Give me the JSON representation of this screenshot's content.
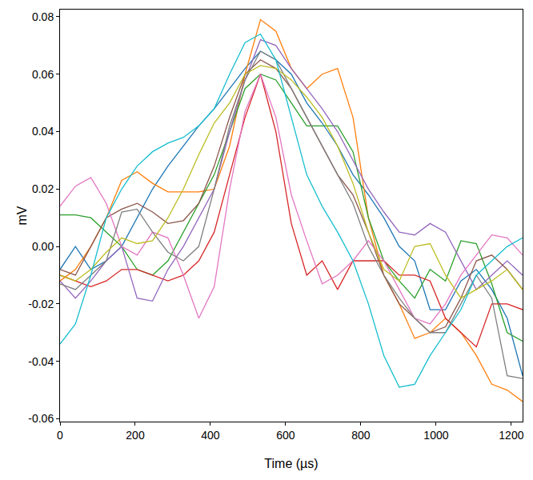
{
  "chart_data": {
    "type": "line",
    "x_label": "Time (µs)",
    "y_label": "mV",
    "x": [
      0,
      41,
      82,
      123,
      164,
      205,
      246,
      287,
      328,
      369,
      410,
      451,
      492,
      533,
      574,
      615,
      656,
      697,
      738,
      779,
      820,
      861,
      902,
      943,
      984,
      1025,
      1066,
      1107,
      1148,
      1189,
      1230
    ],
    "series": [
      {
        "color": "#1f77b4",
        "values": [
          -0.008,
          0.0,
          -0.008,
          -0.005,
          0.0,
          0.01,
          0.02,
          0.028,
          0.035,
          0.042,
          0.048,
          0.055,
          0.062,
          0.068,
          0.065,
          0.06,
          0.05,
          0.043,
          0.035,
          0.025,
          0.018,
          0.01,
          0.0,
          -0.005,
          -0.022,
          -0.022,
          -0.012,
          -0.008,
          -0.015,
          -0.025,
          -0.045
        ]
      },
      {
        "color": "#ff7f0e",
        "values": [
          -0.012,
          -0.008,
          0.0,
          0.01,
          0.023,
          0.026,
          0.022,
          0.019,
          0.019,
          0.019,
          0.02,
          0.035,
          0.06,
          0.079,
          0.075,
          0.062,
          0.055,
          0.06,
          0.062,
          0.045,
          0.01,
          -0.01,
          -0.02,
          -0.032,
          -0.03,
          -0.025,
          -0.03,
          -0.038,
          -0.048,
          -0.05,
          -0.054
        ]
      },
      {
        "color": "#2ca02c",
        "values": [
          0.011,
          0.011,
          0.01,
          0.005,
          0.0,
          -0.008,
          -0.01,
          -0.005,
          0.005,
          0.015,
          0.025,
          0.04,
          0.055,
          0.06,
          0.058,
          0.05,
          0.042,
          0.042,
          0.042,
          0.033,
          0.01,
          -0.005,
          -0.012,
          -0.018,
          -0.008,
          -0.012,
          0.002,
          0.001,
          -0.013,
          -0.03,
          -0.033
        ]
      },
      {
        "color": "#d62728",
        "values": [
          -0.01,
          -0.012,
          -0.014,
          -0.012,
          -0.008,
          -0.008,
          -0.01,
          -0.012,
          -0.01,
          -0.005,
          0.005,
          0.025,
          0.045,
          0.06,
          0.04,
          0.008,
          -0.01,
          -0.005,
          -0.015,
          -0.005,
          -0.005,
          -0.005,
          -0.01,
          -0.01,
          -0.012,
          -0.025,
          -0.03,
          -0.035,
          -0.02,
          -0.02,
          -0.022
        ]
      },
      {
        "color": "#9467bd",
        "values": [
          -0.012,
          -0.018,
          -0.012,
          -0.005,
          0.0,
          -0.018,
          -0.019,
          -0.008,
          0.0,
          0.01,
          0.02,
          0.04,
          0.058,
          0.072,
          0.07,
          0.062,
          0.055,
          0.048,
          0.04,
          0.03,
          0.02,
          0.012,
          0.005,
          0.004,
          0.008,
          0.005,
          -0.005,
          -0.015,
          -0.01,
          -0.005,
          -0.01
        ]
      },
      {
        "color": "#8c564b",
        "values": [
          -0.008,
          -0.01,
          0.0,
          0.01,
          0.013,
          0.015,
          0.012,
          0.008,
          0.009,
          0.015,
          0.028,
          0.045,
          0.06,
          0.065,
          0.062,
          0.055,
          0.045,
          0.035,
          0.025,
          0.018,
          0.005,
          -0.01,
          -0.02,
          -0.025,
          -0.03,
          -0.028,
          -0.018,
          -0.005,
          -0.003,
          -0.008,
          -0.015
        ]
      },
      {
        "color": "#e377c2",
        "values": [
          0.014,
          0.021,
          0.024,
          0.015,
          0.0,
          -0.003,
          0.005,
          0.003,
          -0.01,
          -0.025,
          -0.014,
          0.02,
          0.047,
          0.06,
          0.045,
          0.018,
          0.002,
          -0.013,
          -0.01,
          -0.005,
          0.002,
          -0.005,
          -0.015,
          -0.025,
          -0.027,
          -0.02,
          -0.01,
          -0.003,
          0.004,
          0.003,
          -0.003
        ]
      },
      {
        "color": "#7f7f7f",
        "values": [
          -0.013,
          -0.015,
          -0.01,
          -0.005,
          0.012,
          0.013,
          0.005,
          -0.002,
          -0.005,
          0.0,
          0.02,
          0.042,
          0.058,
          0.068,
          0.065,
          0.055,
          0.045,
          0.035,
          0.025,
          0.015,
          0.0,
          -0.01,
          -0.018,
          -0.025,
          -0.03,
          -0.03,
          -0.02,
          -0.01,
          -0.018,
          -0.045,
          -0.046
        ]
      },
      {
        "color": "#bcbd22",
        "values": [
          -0.01,
          -0.012,
          -0.008,
          -0.002,
          0.003,
          0.001,
          0.002,
          0.01,
          0.02,
          0.032,
          0.043,
          0.05,
          0.06,
          0.063,
          0.062,
          0.058,
          0.052,
          0.045,
          0.035,
          0.022,
          0.005,
          -0.008,
          -0.012,
          0.0,
          0.001,
          -0.01,
          -0.018,
          -0.015,
          -0.012,
          -0.008,
          -0.015
        ]
      },
      {
        "color": "#17becf",
        "values": [
          -0.034,
          -0.027,
          -0.01,
          0.01,
          0.02,
          0.028,
          0.033,
          0.036,
          0.038,
          0.042,
          0.048,
          0.06,
          0.071,
          0.074,
          0.065,
          0.045,
          0.025,
          0.014,
          0.005,
          -0.005,
          -0.02,
          -0.038,
          -0.049,
          -0.048,
          -0.038,
          -0.03,
          -0.022,
          -0.01,
          -0.005,
          0.0,
          0.003
        ]
      }
    ],
    "xlim": [
      0,
      1230
    ],
    "xticks": [
      0,
      200,
      400,
      600,
      800,
      1000,
      1200
    ],
    "ylim": [
      -0.061,
      0.0825
    ],
    "yticks": [
      -0.06,
      -0.04,
      -0.02,
      {
        "value": 0,
        "label": "0.00"
      },
      0.02,
      0.04,
      0.06,
      0.08
    ],
    "grid": false
  }
}
